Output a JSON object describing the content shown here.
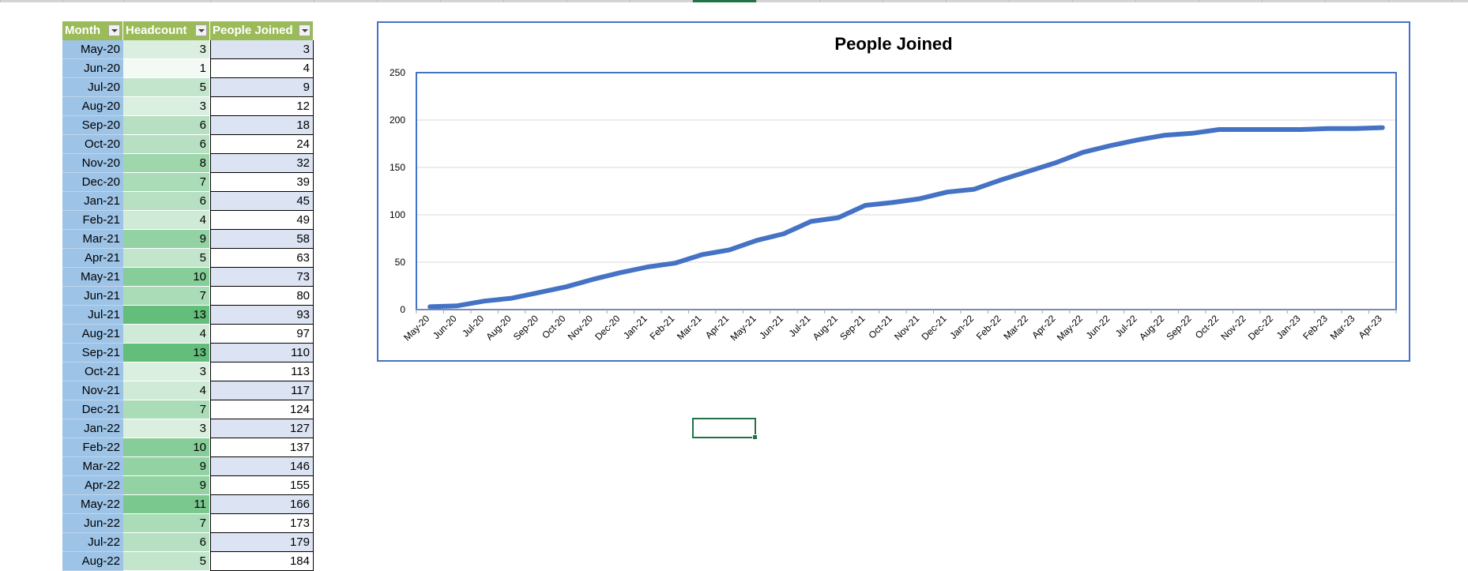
{
  "table": {
    "headers": {
      "month": "Month",
      "headcount": "Headcount",
      "joined": "People Joined"
    },
    "rows": [
      {
        "month": "May-20",
        "headcount": "3",
        "joined": "3"
      },
      {
        "month": "Jun-20",
        "headcount": "1",
        "joined": "4"
      },
      {
        "month": "Jul-20",
        "headcount": "5",
        "joined": "9"
      },
      {
        "month": "Aug-20",
        "headcount": "3",
        "joined": "12"
      },
      {
        "month": "Sep-20",
        "headcount": "6",
        "joined": "18"
      },
      {
        "month": "Oct-20",
        "headcount": "6",
        "joined": "24"
      },
      {
        "month": "Nov-20",
        "headcount": "8",
        "joined": "32"
      },
      {
        "month": "Dec-20",
        "headcount": "7",
        "joined": "39"
      },
      {
        "month": "Jan-21",
        "headcount": "6",
        "joined": "45"
      },
      {
        "month": "Feb-21",
        "headcount": "4",
        "joined": "49"
      },
      {
        "month": "Mar-21",
        "headcount": "9",
        "joined": "58"
      },
      {
        "month": "Apr-21",
        "headcount": "5",
        "joined": "63"
      },
      {
        "month": "May-21",
        "headcount": "10",
        "joined": "73"
      },
      {
        "month": "Jun-21",
        "headcount": "7",
        "joined": "80"
      },
      {
        "month": "Jul-21",
        "headcount": "13",
        "joined": "93"
      },
      {
        "month": "Aug-21",
        "headcount": "4",
        "joined": "97"
      },
      {
        "month": "Sep-21",
        "headcount": "13",
        "joined": "110"
      },
      {
        "month": "Oct-21",
        "headcount": "3",
        "joined": "113"
      },
      {
        "month": "Nov-21",
        "headcount": "4",
        "joined": "117"
      },
      {
        "month": "Dec-21",
        "headcount": "7",
        "joined": "124"
      },
      {
        "month": "Jan-22",
        "headcount": "3",
        "joined": "127"
      },
      {
        "month": "Feb-22",
        "headcount": "10",
        "joined": "137"
      },
      {
        "month": "Mar-22",
        "headcount": "9",
        "joined": "146"
      },
      {
        "month": "Apr-22",
        "headcount": "9",
        "joined": "155"
      },
      {
        "month": "May-22",
        "headcount": "11",
        "joined": "166"
      },
      {
        "month": "Jun-22",
        "headcount": "7",
        "joined": "173"
      },
      {
        "month": "Jul-22",
        "headcount": "6",
        "joined": "179"
      },
      {
        "month": "Aug-22",
        "headcount": "5",
        "joined": "184"
      }
    ]
  },
  "colors": {
    "header_bg": "#9bbb59",
    "month_bg": "#9dc3e6",
    "scale_low": "#f3f9f4",
    "scale_high": "#63be7b",
    "line": "#4472c4",
    "chart_border": "#4472c4",
    "selection": "#217346"
  },
  "chart_data": {
    "type": "line",
    "title": "People Joined",
    "xlabel": "",
    "ylabel": "",
    "ylim": [
      0,
      250
    ],
    "yticks": [
      0,
      50,
      100,
      150,
      200,
      250
    ],
    "grid": true,
    "legend": "none",
    "categories": [
      "May-20",
      "Jun-20",
      "Jul-20",
      "Aug-20",
      "Sep-20",
      "Oct-20",
      "Nov-20",
      "Dec-20",
      "Jan-21",
      "Feb-21",
      "Mar-21",
      "Apr-21",
      "May-21",
      "Jun-21",
      "Jul-21",
      "Aug-21",
      "Sep-21",
      "Oct-21",
      "Nov-21",
      "Dec-21",
      "Jan-22",
      "Feb-22",
      "Mar-22",
      "Apr-22",
      "May-22",
      "Jun-22",
      "Jul-22",
      "Aug-22",
      "Sep-22",
      "Oct-22",
      "Nov-22",
      "Dec-22",
      "Jan-23",
      "Feb-23",
      "Mar-23",
      "Apr-23"
    ],
    "series": [
      {
        "values": [
          3,
          4,
          9,
          12,
          18,
          24,
          32,
          39,
          45,
          49,
          58,
          63,
          73,
          80,
          93,
          97,
          110,
          113,
          117,
          124,
          127,
          137,
          146,
          155,
          166,
          173,
          179,
          184,
          186,
          190,
          190,
          190,
          190,
          191,
          191,
          192
        ]
      }
    ]
  }
}
